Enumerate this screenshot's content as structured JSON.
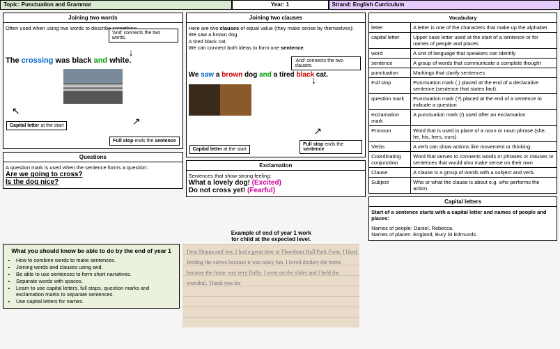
{
  "header": {
    "topic_label": "Topic:",
    "topic": "Punctuation and Grammar",
    "year_label": "Year:",
    "year": "1",
    "strand_label": "Strand:",
    "strand": "English Curriculum"
  },
  "joining_words": {
    "title": "Joining two words",
    "desc": "Often used when using two words to describe something.",
    "and_label": "'And' connects the two words.",
    "sentence_pre": "The ",
    "w1": "crossing",
    "w_was": " was ",
    "w2": "black",
    "w_and": " and ",
    "w3": "white",
    "w_dot": ".",
    "cap_label": "Capital letter",
    "cap_rest": " at the start",
    "fs_label": "Full stop",
    "fs_rest": " ends the ",
    "fs_bold": "sentence"
  },
  "joining_clauses": {
    "title": "Joining two clauses",
    "desc1": "Here are two ",
    "desc1b": "clauses",
    "desc1c": " of equal value (they make sense by themselves):",
    "l1": "We saw a brown dog.",
    "l2": "A tired black cat.",
    "l3a": "We can connect both ideas to form one ",
    "l3b": "sentence",
    "l3c": ".",
    "and_label": "'And' connects the two clauses.",
    "s_we": "We ",
    "s_saw": "saw",
    "s_a1": " a ",
    "s_brown": "brown",
    "s_dog": " dog ",
    "s_and": "and",
    "s_a2": " a tired ",
    "s_black": "black",
    "s_cat": " cat.",
    "cap_label": "Capital letter",
    "cap_rest": " at the start",
    "fs_label": "Full stop",
    "fs_rest": " ends the ",
    "fs_bold": "sentence"
  },
  "questions": {
    "title": "Questions",
    "desc": "A question mark is used when the sentence forms a question:",
    "q1": "Are we going to cross?",
    "q2": "Is the dog nice?"
  },
  "exclamation": {
    "title": "Exclamation",
    "desc": "Sentences that show strong feeling:",
    "e1": "What a lovely dog!",
    "e1t": " (Excited)",
    "e2": "Do not cross yet!",
    "e2t": " (Fearful)"
  },
  "example_caption_l1": "Example of end of year 1 work",
  "example_caption_l2": "for child at the expected level.",
  "end_year": {
    "title": "What you should know be able to do by the end of year 1",
    "items": [
      "How to combine words to make sentences.",
      "Joining words and clauses using and.",
      "Be able to use sentences to form short narratives.",
      "Separate words with spaces.",
      "Learn to use capital letters, full stops, question marks and exclamation marks to separate sentences.",
      "Use capital letters for names."
    ]
  },
  "handwriting": "Dear Donna and Jon,\nI had a great time at Thornham\nHall Park Farm. I liked feeding\nthe calves because it was noisy fun.\nI loved donkey the home because the\nhorse was very fluffy. I went\non the slides and I held the\nwuvabul. Thank you for",
  "vocab": {
    "title": "Vocabulary",
    "rows": [
      [
        "letter",
        "A letter is one of the characters that make up the alphabet."
      ],
      [
        "capital letter",
        "Upper case letter used at the start of a sentence or for names of people and places"
      ],
      [
        "word",
        "A unit of language that speakers can identify"
      ],
      [
        "sentence",
        "A group of words that communicate a complete thought"
      ],
      [
        "punctuation",
        "Markings that clarify sentences"
      ],
      [
        "Full stop",
        "Punctuation mark (.) placed at the end of a declarative sentence (sentence that states fact)."
      ],
      [
        "question mark",
        "Punctuation mark (?) placed at the end of a sentence to indicate a question"
      ],
      [
        "exclamation mark",
        "A punctuation mark (!) used after an exclamation"
      ],
      [
        "Pronoun",
        "Word that is used in place of a noun or noun phrase (she, he, his, hers, ours)"
      ],
      [
        "Verbs",
        "A verb can show actions like movement or thinking."
      ],
      [
        "Coordinating conjunction",
        "Word that serves to connects words or phrases or clauses or sentences that would also make sense on their own"
      ],
      [
        "Clause",
        "A clause is a group of words with a subject and verb."
      ],
      [
        "Subject",
        "Who or what the clause is about e.g. who performs the action."
      ]
    ]
  },
  "capitals": {
    "title": "Capital letters",
    "l1": "Start of a sentence starts with a capital letter and names of people and places:",
    "l2": "Names of people: Daniel, Rebecca.",
    "l3": "Names of places: England, Bury St Edmunds."
  }
}
